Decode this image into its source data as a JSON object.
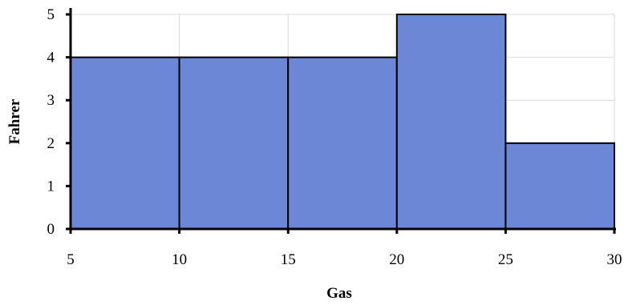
{
  "chart_data": {
    "type": "bar",
    "title": "",
    "xlabel": "Gas",
    "ylabel": "Fahrer",
    "bins": [
      {
        "start": 5,
        "end": 10,
        "value": 4
      },
      {
        "start": 10,
        "end": 15,
        "value": 4
      },
      {
        "start": 15,
        "end": 20,
        "value": 4
      },
      {
        "start": 20,
        "end": 25,
        "value": 5
      },
      {
        "start": 25,
        "end": 30,
        "value": 2
      }
    ],
    "xlim": [
      5,
      30
    ],
    "ylim": [
      0,
      5
    ],
    "x_ticks": [
      "5",
      "10",
      "15",
      "20",
      "25",
      "30"
    ],
    "y_ticks": [
      "0",
      "1",
      "2",
      "3",
      "4",
      "5"
    ],
    "grid": true,
    "bar_color": "#6b87d6",
    "grid_color": "#d9d9d9"
  }
}
